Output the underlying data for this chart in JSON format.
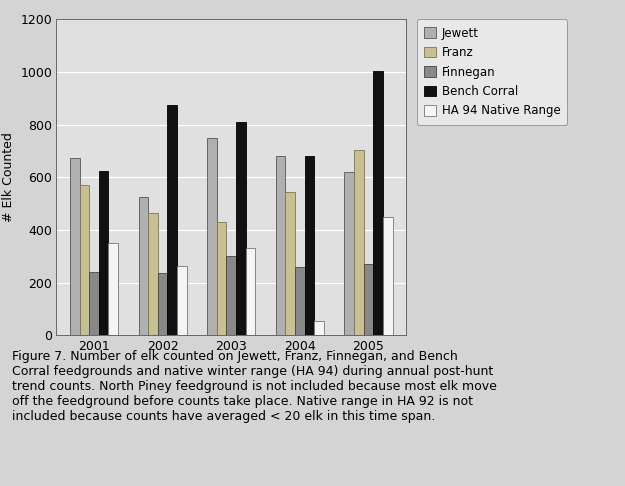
{
  "years": [
    "2001",
    "2002",
    "2003",
    "2004",
    "2005"
  ],
  "series": {
    "Jewett": [
      675,
      525,
      750,
      680,
      620
    ],
    "Franz": [
      570,
      465,
      430,
      545,
      705
    ],
    "Finnegan": [
      240,
      235,
      300,
      258,
      270
    ],
    "Bench Corral": [
      625,
      875,
      810,
      682,
      1005
    ],
    "HA 94 Native Range": [
      350,
      265,
      330,
      55,
      450
    ]
  },
  "colors": {
    "Jewett": "#b0b0b0",
    "Franz": "#c8c090",
    "Finnegan": "#888888",
    "Bench Corral": "#111111",
    "HA 94 Native Range": "#f5f5f5"
  },
  "edgecolors": {
    "Jewett": "#555555",
    "Franz": "#777755",
    "Finnegan": "#444444",
    "Bench Corral": "#000000",
    "HA 94 Native Range": "#777777"
  },
  "ylabel": "# Elk Counted",
  "ylim": [
    0,
    1200
  ],
  "yticks": [
    0,
    200,
    400,
    600,
    800,
    1000,
    1200
  ],
  "caption": "Figure 7. Number of elk counted on Jewett, Franz, Finnegan, and Bench\nCorral feedgrounds and native winter range (HA 94) during annual post-hunt\ntrend counts. North Piney feedground is not included because most elk move\noff the feedground before counts take place. Native range in HA 92 is not\nincluded because counts have averaged < 20 elk in this time span.",
  "plot_bg_color": "#e0e0e0",
  "fig_bg_color": "#d4d4d4",
  "grid_color": "#ffffff",
  "legend_fontsize": 8.5,
  "axis_fontsize": 9,
  "caption_fontsize": 9,
  "bar_width": 0.14
}
